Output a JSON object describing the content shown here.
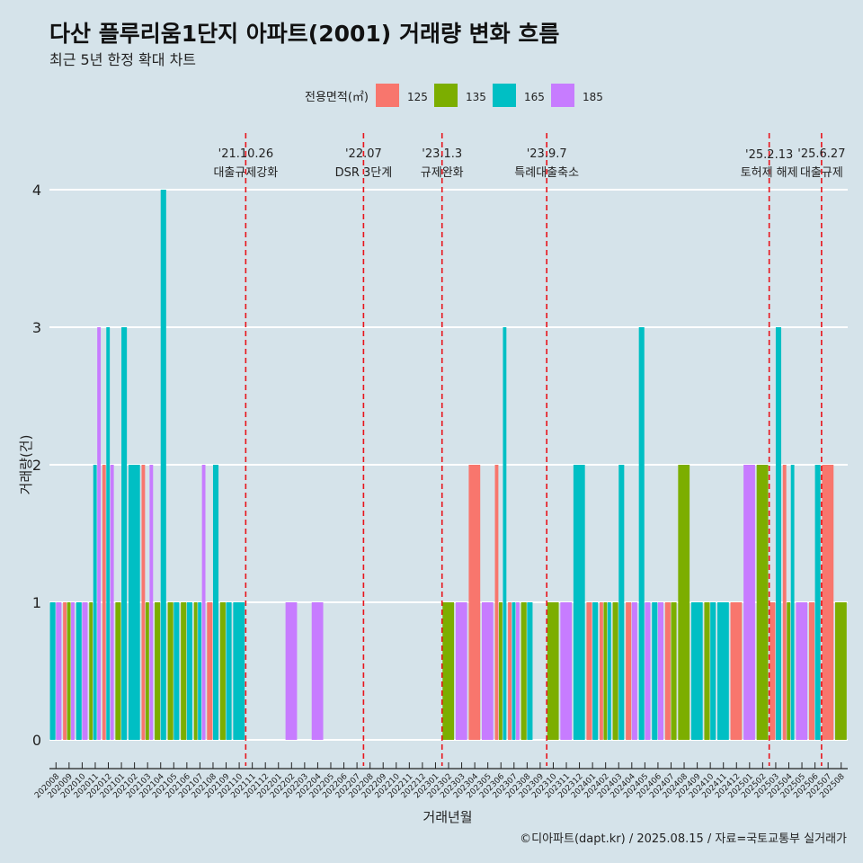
{
  "chart_data": {
    "type": "bar",
    "title": "다산 플루리움1단지 아파트(2001) 거래량 변화 흐름",
    "subtitle": "최근 5년 한정 확대 차트",
    "xlabel": "거래년월",
    "ylabel": "거래량(건)",
    "legend_title": "전용면적(㎡)",
    "legend_position": "top",
    "caption": "©디아파트(dapt.kr) / 2025.08.15 / 자료=국토교통부 실거래가",
    "ylim": [
      0,
      4
    ],
    "yticks": [
      0,
      1,
      2,
      3,
      4
    ],
    "grid": true,
    "categories": [
      "202008",
      "202009",
      "202010",
      "202011",
      "202012",
      "202101",
      "202102",
      "202103",
      "202104",
      "202105",
      "202106",
      "202107",
      "202108",
      "202109",
      "202110",
      "202111",
      "202112",
      "202201",
      "202202",
      "202203",
      "202204",
      "202205",
      "202206",
      "202207",
      "202208",
      "202209",
      "202210",
      "202211",
      "202212",
      "202301",
      "202302",
      "202303",
      "202304",
      "202305",
      "202306",
      "202307",
      "202308",
      "202309",
      "202310",
      "202311",
      "202312",
      "202401",
      "202402",
      "202403",
      "202404",
      "202405",
      "202406",
      "202407",
      "202408",
      "202409",
      "202410",
      "202411",
      "202412",
      "202501",
      "202502",
      "202503",
      "202504",
      "202505",
      "202506",
      "202507",
      "202508"
    ],
    "series": [
      {
        "name": "125",
        "color": "#f8766d",
        "values": [
          0,
          1,
          0,
          0,
          2,
          0,
          0,
          2,
          0,
          0,
          0,
          0,
          1,
          0,
          0,
          0,
          0,
          0,
          0,
          0,
          0,
          0,
          0,
          0,
          0,
          0,
          0,
          0,
          0,
          0,
          0,
          0,
          2,
          0,
          2,
          1,
          0,
          0,
          0,
          0,
          0,
          1,
          1,
          0,
          1,
          0,
          0,
          1,
          0,
          0,
          0,
          0,
          1,
          0,
          0,
          1,
          2,
          0,
          1,
          2,
          0
        ]
      },
      {
        "name": "135",
        "color": "#7cae00",
        "values": [
          0,
          1,
          0,
          1,
          0,
          1,
          0,
          1,
          1,
          1,
          1,
          1,
          0,
          1,
          0,
          0,
          0,
          0,
          0,
          0,
          0,
          0,
          0,
          0,
          0,
          0,
          0,
          0,
          0,
          0,
          1,
          0,
          0,
          0,
          1,
          0,
          1,
          0,
          1,
          0,
          0,
          0,
          1,
          1,
          0,
          0,
          0,
          1,
          2,
          0,
          1,
          0,
          0,
          0,
          2,
          0,
          1,
          0,
          0,
          0,
          1
        ]
      },
      {
        "name": "165",
        "color": "#00bfc4",
        "values": [
          1,
          0,
          1,
          2,
          3,
          3,
          2,
          0,
          4,
          1,
          1,
          1,
          2,
          1,
          1,
          0,
          0,
          0,
          0,
          0,
          0,
          0,
          0,
          0,
          0,
          0,
          0,
          0,
          0,
          0,
          0,
          0,
          0,
          0,
          3,
          1,
          1,
          0,
          0,
          0,
          2,
          1,
          1,
          2,
          0,
          3,
          1,
          0,
          0,
          1,
          1,
          1,
          0,
          0,
          0,
          3,
          2,
          0,
          2,
          0,
          0
        ]
      },
      {
        "name": "185",
        "color": "#c77cff",
        "values": [
          1,
          1,
          1,
          3,
          2,
          0,
          0,
          2,
          0,
          0,
          0,
          2,
          0,
          0,
          0,
          0,
          0,
          0,
          1,
          0,
          1,
          0,
          0,
          0,
          0,
          0,
          0,
          0,
          0,
          0,
          0,
          1,
          0,
          1,
          0,
          1,
          0,
          0,
          0,
          1,
          0,
          0,
          0,
          0,
          1,
          1,
          1,
          0,
          0,
          0,
          0,
          0,
          0,
          2,
          0,
          0,
          0,
          1,
          0,
          0,
          0
        ]
      }
    ],
    "events": [
      {
        "date": "'21.10.26",
        "label": "대출규제강화",
        "after": "202110"
      },
      {
        "date": "'22.07",
        "label": "DSR 3단계",
        "after": "202207"
      },
      {
        "date": "'23.1.3",
        "label": "규제완화",
        "after": "202301"
      },
      {
        "date": "'23.9.7",
        "label": "특례대출축소",
        "after": "202309"
      },
      {
        "date": "'25.2.13",
        "label": "토허제 해제",
        "after": "202502"
      },
      {
        "date": "'25.6.27",
        "label": "대출규제",
        "after": "202506"
      }
    ]
  }
}
